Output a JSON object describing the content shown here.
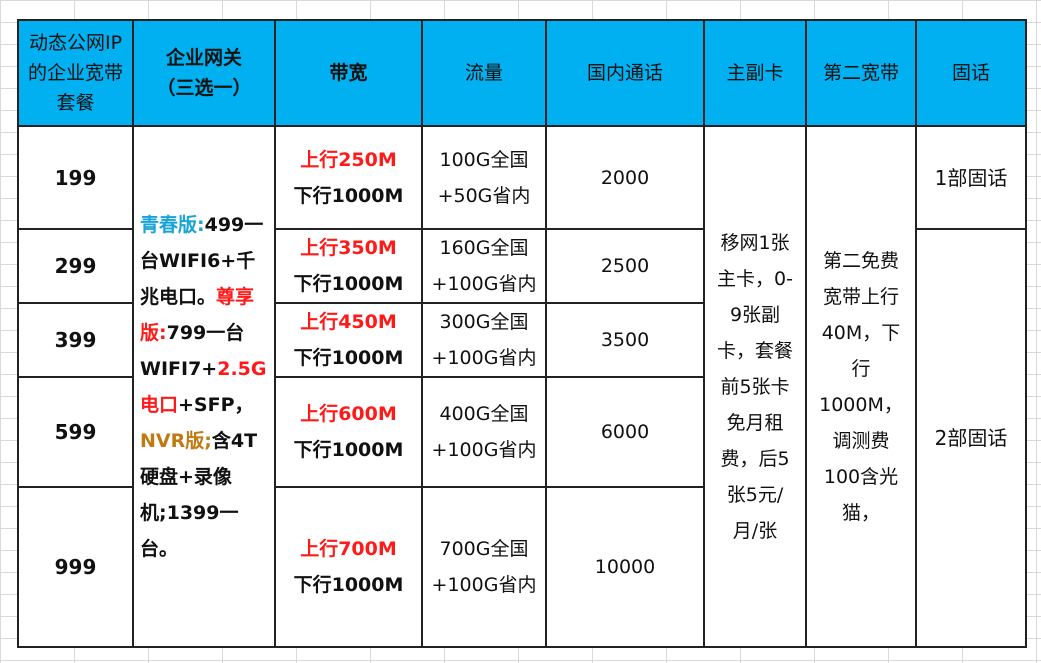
{
  "header": {
    "c1": "动态公网IP的企业宽带套餐",
    "c2": "企业网关（三选一）",
    "c3": "带宽",
    "c4": "流量",
    "c5": "国内通话",
    "c6": "主副卡",
    "c7": "第二宽带",
    "c8": "固话"
  },
  "rows": [
    {
      "price": "199",
      "up": "上行250M",
      "down": "下行1000M",
      "flow1": "100G全国",
      "flow2": "+50G省内",
      "calls": "2000"
    },
    {
      "price": "299",
      "up": "上行350M",
      "down": "下行1000M",
      "flow1": "160G全国",
      "flow2": "+100G省内",
      "calls": "2500"
    },
    {
      "price": "399",
      "up": "上行450M",
      "down": "下行1000M",
      "flow1": "300G全国",
      "flow2": "+100G省内",
      "calls": "3500"
    },
    {
      "price": "599",
      "up": "上行600M",
      "down": "下行1000M",
      "flow1": "400G全国",
      "flow2": "+100G省内",
      "calls": "6000"
    },
    {
      "price": "999",
      "up": "上行700M",
      "down": "下行1000M",
      "flow1": "700G全国",
      "flow2": "+100G省内",
      "calls": "10000"
    }
  ],
  "gateway": {
    "youth_label": "青春版:",
    "youth_text": "499一台WIFI6+千兆电口。",
    "premium_label": "尊享版:",
    "premium_text_a": "799一台WIFI7+",
    "premium_red": "2.5G电口",
    "premium_text_b": "+SFP，",
    "nvr_label": "NVR版;",
    "nvr_text": "含4T硬盘+录像机;1399一台。"
  },
  "sim_text": "移网1张主卡，0-9张副卡，套餐前5张卡免月租费，后5张5元/月/张",
  "second_broadband": "第二免费宽带上行40M，下行1000M，调测费100含光猫，",
  "landline": {
    "one": "1部固话",
    "two": "2部固话"
  },
  "colors": {
    "header_bg": "#00b0f0",
    "red": "#ff1a1a",
    "blue": "#19a3d6",
    "gold": "#c07a12"
  }
}
